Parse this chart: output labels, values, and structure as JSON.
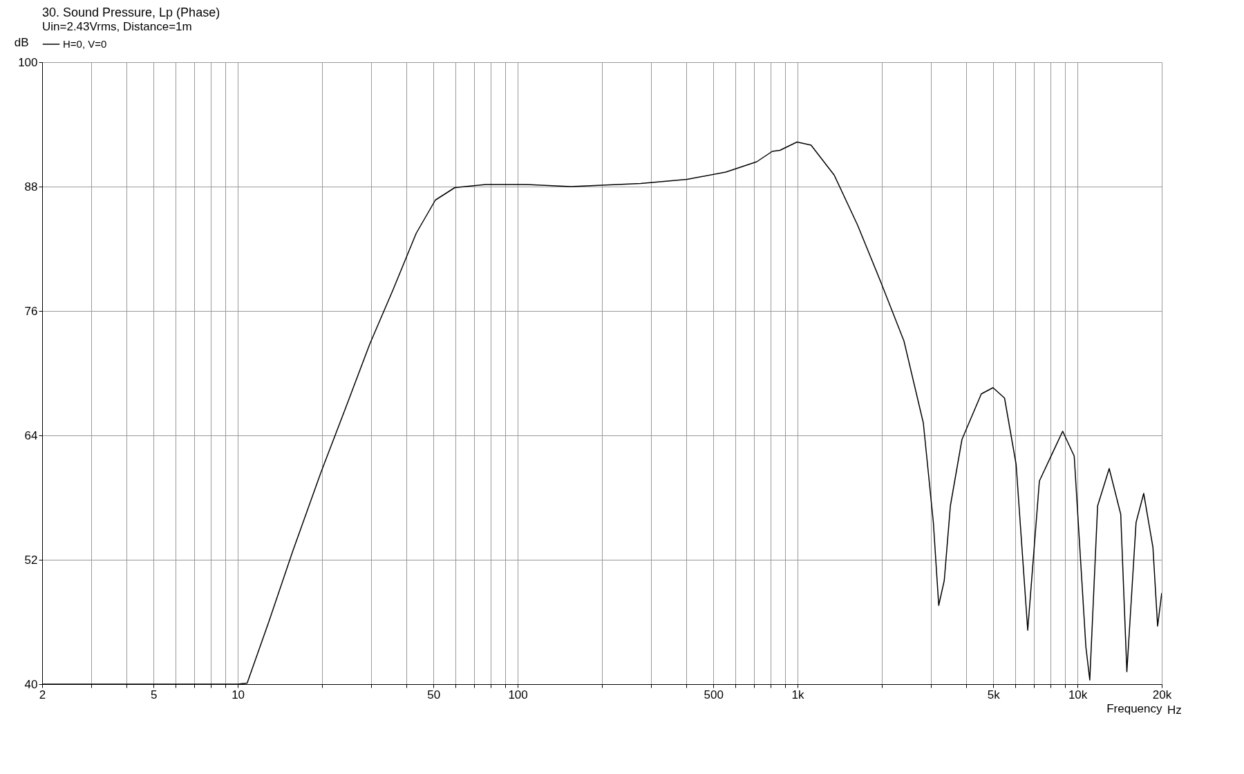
{
  "chart_data": {
    "type": "line",
    "title": "30. Sound Pressure, Lp (Phase)",
    "subtitle": "Uin=2.43Vrms, Distance=1m",
    "xlabel": "Frequency",
    "ylabel": "dB",
    "annotations": [
      "Hz"
    ],
    "log": "x",
    "grid": true,
    "legend": "top",
    "marker": "none",
    "line_style": "solid",
    "xlim": [
      2,
      20000
    ],
    "ylim": [
      40,
      100
    ],
    "xticks": [
      2,
      {
        "value": 3,
        "label": null
      },
      {
        "value": 4,
        "label": null
      },
      5,
      {
        "value": 6,
        "label": null
      },
      {
        "value": 7,
        "label": null
      },
      {
        "value": 8,
        "label": null
      },
      {
        "value": 9,
        "label": null
      },
      10,
      {
        "value": 20,
        "label": null
      },
      {
        "value": 30,
        "label": null
      },
      {
        "value": 40,
        "label": null
      },
      50,
      {
        "value": 60,
        "label": null
      },
      {
        "value": 70,
        "label": null
      },
      {
        "value": 80,
        "label": null
      },
      {
        "value": 90,
        "label": null
      },
      100,
      {
        "value": 200,
        "label": null
      },
      {
        "value": 300,
        "label": null
      },
      {
        "value": 400,
        "label": null
      },
      500,
      {
        "value": 600,
        "label": null
      },
      {
        "value": 700,
        "label": null
      },
      {
        "value": 800,
        "label": null
      },
      {
        "value": 900,
        "label": null
      },
      {
        "value": 1000,
        "label": "1k"
      },
      {
        "value": 2000,
        "label": null
      },
      {
        "value": 3000,
        "label": null
      },
      {
        "value": 4000,
        "label": null
      },
      {
        "value": 5000,
        "label": "5k"
      },
      {
        "value": 6000,
        "label": null
      },
      {
        "value": 7000,
        "label": null
      },
      {
        "value": 8000,
        "label": null
      },
      {
        "value": 9000,
        "label": null
      },
      {
        "value": 10000,
        "label": "10k"
      },
      {
        "value": 20000,
        "label": "20k"
      }
    ],
    "yticks": [
      40,
      52,
      64,
      76,
      88,
      100
    ],
    "series": [
      {
        "name": "H=0, V=0",
        "color": "#000000",
        "x": [
          2,
          10,
          10.8,
          12.9,
          15.7,
          19.8,
          24.4,
          29.6,
          35.8,
          43.4,
          50.8,
          59.6,
          76.9,
          106,
          155,
          275,
          403,
          554,
          715,
          812,
          865,
          995,
          1117,
          1352,
          1637,
          1982,
          2399,
          2813,
          3055,
          3193,
          3342,
          3514,
          3865,
          4532,
          4990,
          5487,
          6036,
          6640,
          7309,
          8852,
          9733,
          10714,
          11063,
          11800,
          12980,
          14270,
          15010,
          16190,
          17240,
          18600,
          19330,
          20000
        ],
        "values": [
          40,
          40,
          40.1,
          46.0,
          52.8,
          60.4,
          66.8,
          72.8,
          78.0,
          83.5,
          86.7,
          87.9,
          88.2,
          88.2,
          88.0,
          88.3,
          88.7,
          89.4,
          90.4,
          91.4,
          91.5,
          92.3,
          92.0,
          89.1,
          84.3,
          78.8,
          73.1,
          65.2,
          55.6,
          47.6,
          50.0,
          57.2,
          63.6,
          68.0,
          68.6,
          67.6,
          61.2,
          45.2,
          59.6,
          64.4,
          62.0,
          43.6,
          40.4,
          57.2,
          60.8,
          56.4,
          41.2,
          55.6,
          58.4,
          53.2,
          45.6,
          48.8
        ]
      }
    ]
  }
}
